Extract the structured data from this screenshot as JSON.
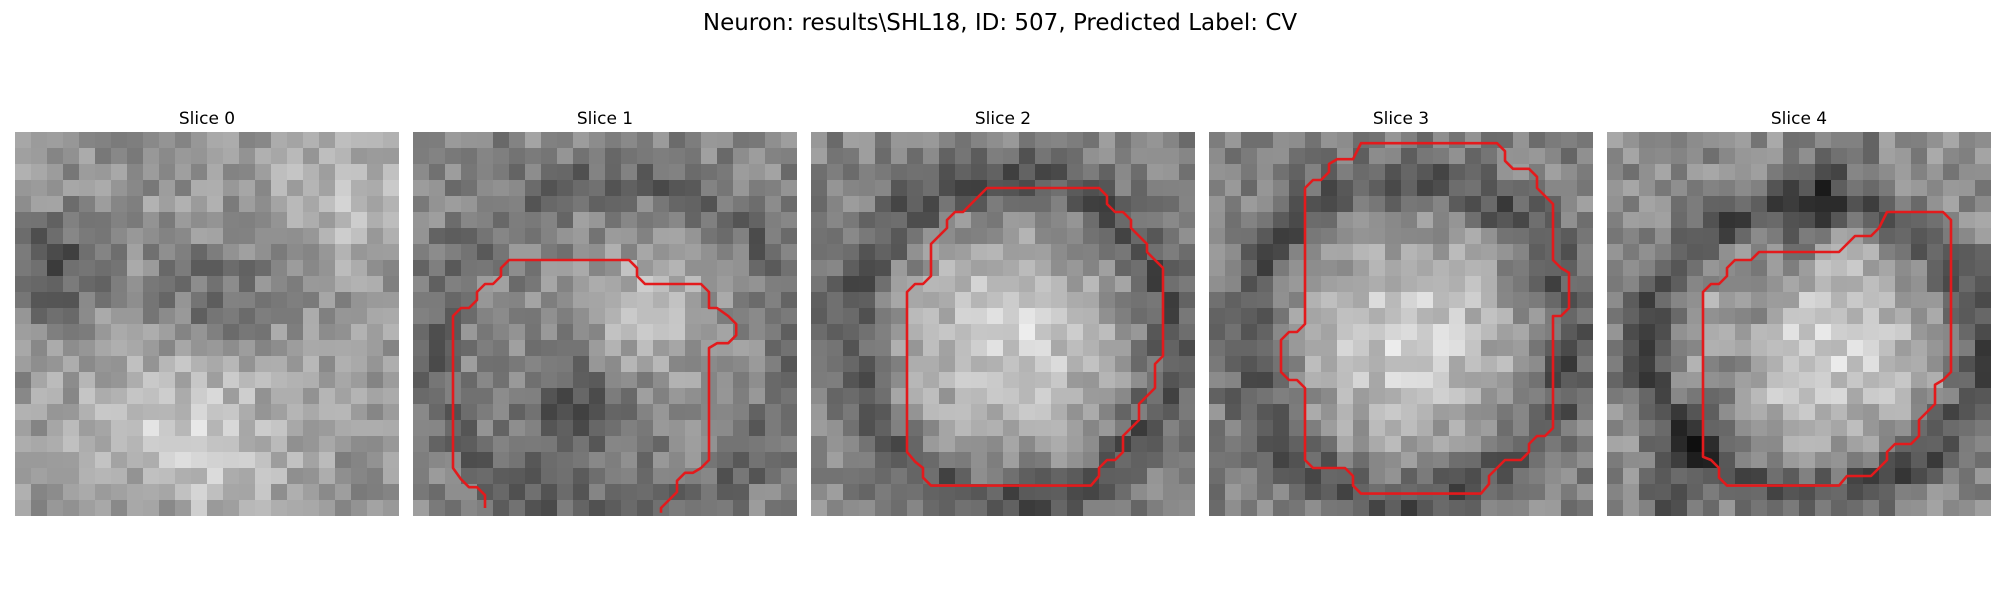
{
  "figure": {
    "title": "Neuron: results\\SHL18, ID: 507, Predicted Label: CV",
    "contour_color": "#e31a1c"
  },
  "panels": [
    {
      "title": "Slice 0",
      "texture": "background-only",
      "contour": false
    },
    {
      "title": "Slice 1",
      "texture": "cell-with-dark-nucleus",
      "contour": true
    },
    {
      "title": "Slice 2",
      "texture": "bright-round-cell",
      "contour": true
    },
    {
      "title": "Slice 3",
      "texture": "bright-round-cell",
      "contour": true
    },
    {
      "title": "Slice 4",
      "texture": "bright-oval-cell",
      "contour": true
    }
  ]
}
